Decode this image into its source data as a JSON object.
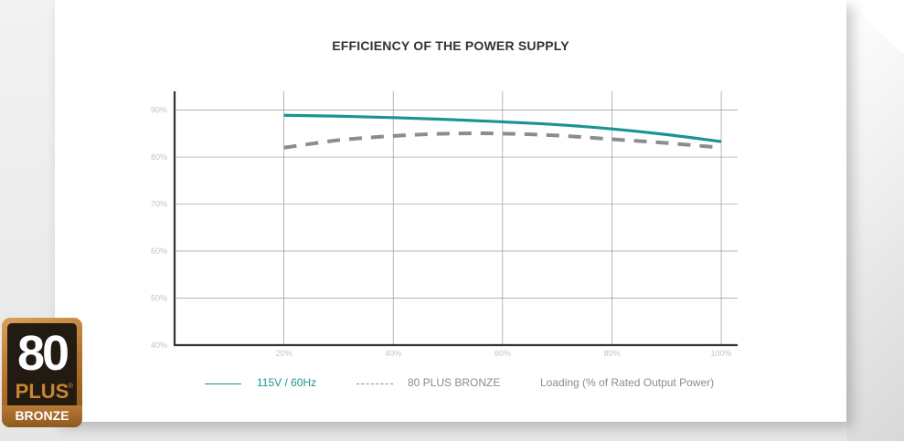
{
  "chart_data": {
    "type": "line",
    "title": "EFFICIENCY OF THE POWER SUPPLY",
    "xlabel": "Loading (% of Rated Output Power)",
    "ylabel": "",
    "x": [
      20,
      30,
      40,
      50,
      60,
      70,
      80,
      90,
      100
    ],
    "x_ticks": [
      20,
      40,
      60,
      80,
      100
    ],
    "x_tick_labels": [
      "20%",
      "40%",
      "60%",
      "80%",
      "100%"
    ],
    "y_ticks": [
      40,
      50,
      60,
      70,
      80,
      90
    ],
    "y_tick_labels": [
      "40%",
      "50%",
      "60%",
      "70%",
      "80%",
      "90%"
    ],
    "xlim": [
      0,
      103
    ],
    "ylim": [
      40,
      94
    ],
    "grid": true,
    "legend_position": "bottom",
    "series": [
      {
        "name": "115V / 60Hz",
        "style": "solid",
        "color": "#1a9490",
        "values": [
          88.9,
          88.7,
          88.4,
          88.0,
          87.5,
          86.9,
          86.0,
          84.8,
          83.3
        ]
      },
      {
        "name": "80 PLUS BRONZE",
        "style": "dashed",
        "color": "#8c8c8c",
        "values": [
          82.0,
          83.6,
          84.5,
          85.0,
          85.0,
          84.6,
          83.8,
          83.0,
          82.0
        ]
      }
    ]
  },
  "badge": {
    "number": "80",
    "plus": "PLUS",
    "registered": "®",
    "tier": "BRONZE"
  }
}
